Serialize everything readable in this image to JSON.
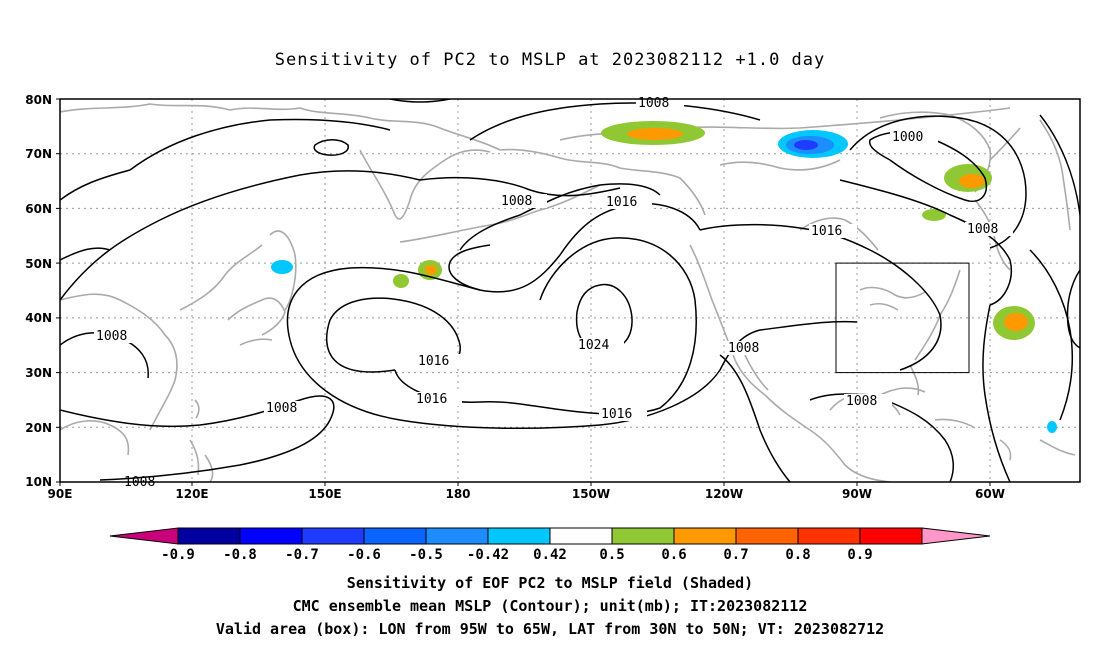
{
  "title": "Sensitivity of PC2 to MSLP at 2023082112 +1.0 day",
  "lat_labels": [
    "80N",
    "70N",
    "60N",
    "50N",
    "40N",
    "30N",
    "20N",
    "10N"
  ],
  "lon_labels": [
    "90E",
    "120E",
    "150E",
    "180",
    "150W",
    "120W",
    "90W",
    "60W"
  ],
  "contour_labels": {
    "c1008_top": "1008",
    "c1000": "1000",
    "c1008_npac": "1008",
    "c1016_alaska": "1016",
    "c1016_canada": "1016",
    "c1008_east": "1008",
    "c1008_west": "1008",
    "c1016_center": "1016",
    "c1024": "1024",
    "c1016_south": "1016",
    "c1016_south2": "1016",
    "c1008_baja": "1008",
    "c1008_mid": "1008",
    "c1008_gulf": "1008",
    "c1008_bottom": "1008"
  },
  "colorbar": {
    "levels": [
      "-0.9",
      "-0.8",
      "-0.7",
      "-0.6",
      "-0.5",
      "-0.42",
      "0.42",
      "0.5",
      "0.6",
      "0.7",
      "0.8",
      "0.9"
    ],
    "colors": [
      "#c8007a",
      "#0000a0",
      "#0000ff",
      "#1e3cff",
      "#0a64ff",
      "#1c8cff",
      "#00c8ff",
      "#ffffff",
      "#8fc832",
      "#ff9900",
      "#ff6400",
      "#ff3200",
      "#ff0000",
      "#ff96c8"
    ]
  },
  "valid_box": {
    "lon": [
      "95W",
      "65W"
    ],
    "lat": [
      "30N",
      "50N"
    ]
  },
  "caption": {
    "line1": "Sensitivity of EOF PC2 to MSLP field (Shaded)",
    "line2": "CMC ensemble mean MSLP (Contour); unit(mb); IT:2023082112",
    "line3": "Valid area (box): LON from 95W to 65W, LAT from 30N to 50N; VT: 2023082712"
  }
}
